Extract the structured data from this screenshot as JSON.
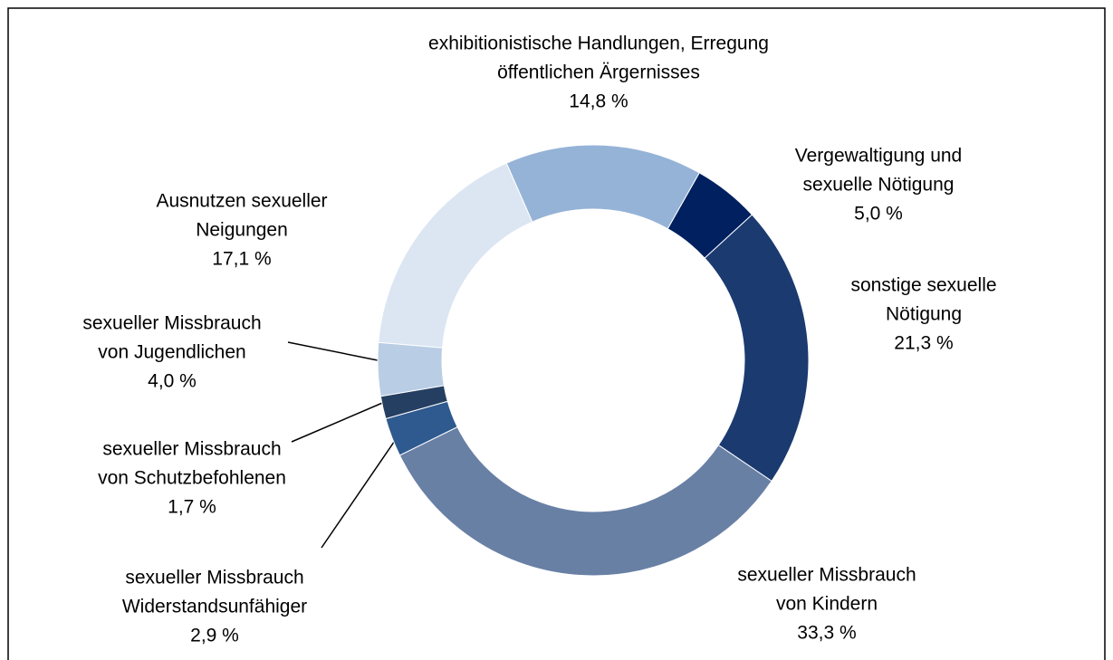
{
  "chart_data": {
    "type": "donut",
    "categories": [
      [
        "Vergewaltigung und",
        "sexuelle Nötigung"
      ],
      [
        "sonstige sexuelle",
        "Nötigung"
      ],
      [
        "sexueller Missbrauch",
        "von Kindern"
      ],
      [
        "sexueller Missbrauch",
        "Widerstandsunfähiger"
      ],
      [
        "sexueller Missbrauch",
        "von Schutzbefohlenen"
      ],
      [
        "sexueller Missbrauch",
        "von Jugendlichen"
      ],
      [
        "Ausnutzen sexueller",
        "Neigungen"
      ],
      [
        "exhibitionistische Handlungen, Erregung",
        "öffentlichen Ärgernisses"
      ]
    ],
    "values": [
      5.0,
      21.3,
      33.3,
      2.9,
      1.7,
      4.0,
      17.1,
      14.8
    ],
    "value_labels": [
      "5,0 %",
      "21,3 %",
      "33,3 %",
      "2,9 %",
      "1,7 %",
      "4,0 %",
      "17,1 %",
      "14,8 %"
    ],
    "colors": [
      "#002060",
      "#1b3a70",
      "#6980a5",
      "#2f5a8f",
      "#253f62",
      "#b9cde5",
      "#dce6f2",
      "#95b3d7"
    ]
  }
}
